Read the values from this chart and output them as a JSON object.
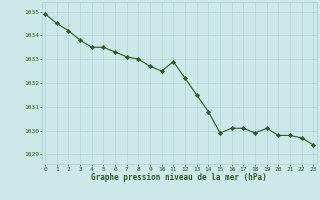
{
  "x": [
    0,
    1,
    2,
    3,
    4,
    5,
    6,
    7,
    8,
    9,
    10,
    11,
    12,
    13,
    14,
    15,
    16,
    17,
    18,
    19,
    20,
    21,
    22,
    23
  ],
  "y": [
    1034.9,
    1034.5,
    1034.2,
    1033.8,
    1033.5,
    1033.5,
    1033.3,
    1033.1,
    1033.0,
    1032.7,
    1032.5,
    1032.9,
    1032.2,
    1031.5,
    1030.8,
    1029.9,
    1030.1,
    1030.1,
    1029.9,
    1030.1,
    1029.8,
    1029.8,
    1029.7,
    1029.4
  ],
  "ylim": [
    1028.6,
    1035.4
  ],
  "yticks": [
    1029,
    1030,
    1031,
    1032,
    1033,
    1034,
    1035
  ],
  "xticks": [
    0,
    1,
    2,
    3,
    4,
    5,
    6,
    7,
    8,
    9,
    10,
    11,
    12,
    13,
    14,
    15,
    16,
    17,
    18,
    19,
    20,
    21,
    22,
    23
  ],
  "xlabel": "Graphe pression niveau de la mer (hPa)",
  "line_color": "#2d5a27",
  "marker_color": "#2d5a27",
  "bg_color": "#cce8e8",
  "grid_color": "#aacfcf",
  "tick_label_color": "#2d5a27",
  "xlabel_color": "#2d5a27"
}
